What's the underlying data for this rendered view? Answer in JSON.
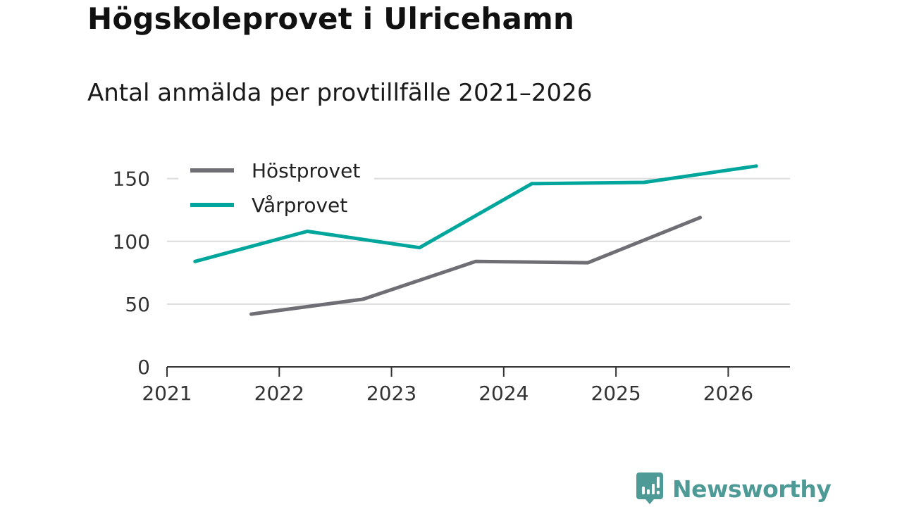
{
  "chart_data": {
    "type": "line",
    "title": "Högskoleprovet i Ulricehamn",
    "subtitle": "Antal anmälda per provtillfälle 2021–2026",
    "xlabel": "",
    "ylabel": "",
    "x_ticks": [
      "2021",
      "2022",
      "2023",
      "2024",
      "2025",
      "2026"
    ],
    "y_ticks": [
      "0",
      "50",
      "100",
      "150"
    ],
    "xlim": [
      2021,
      2026.55
    ],
    "ylim": [
      0,
      170
    ],
    "grid": true,
    "legend_position": "top-left",
    "series": [
      {
        "name": "Höstprovet",
        "color": "#6f6e74",
        "points": [
          {
            "x": 2021.75,
            "y": 42
          },
          {
            "x": 2022.75,
            "y": 54
          },
          {
            "x": 2023.75,
            "y": 84
          },
          {
            "x": 2024.75,
            "y": 83
          },
          {
            "x": 2025.75,
            "y": 119
          }
        ]
      },
      {
        "name": "Vårprovet",
        "color": "#00a69c",
        "points": [
          {
            "x": 2021.25,
            "y": 84
          },
          {
            "x": 2022.25,
            "y": 108
          },
          {
            "x": 2023.25,
            "y": 95
          },
          {
            "x": 2024.25,
            "y": 146
          },
          {
            "x": 2025.25,
            "y": 147
          },
          {
            "x": 2026.25,
            "y": 160
          }
        ]
      }
    ]
  },
  "brand": {
    "name": "Newsworthy",
    "color": "#4e9a96",
    "icon": "newsworthy-logo-icon"
  }
}
